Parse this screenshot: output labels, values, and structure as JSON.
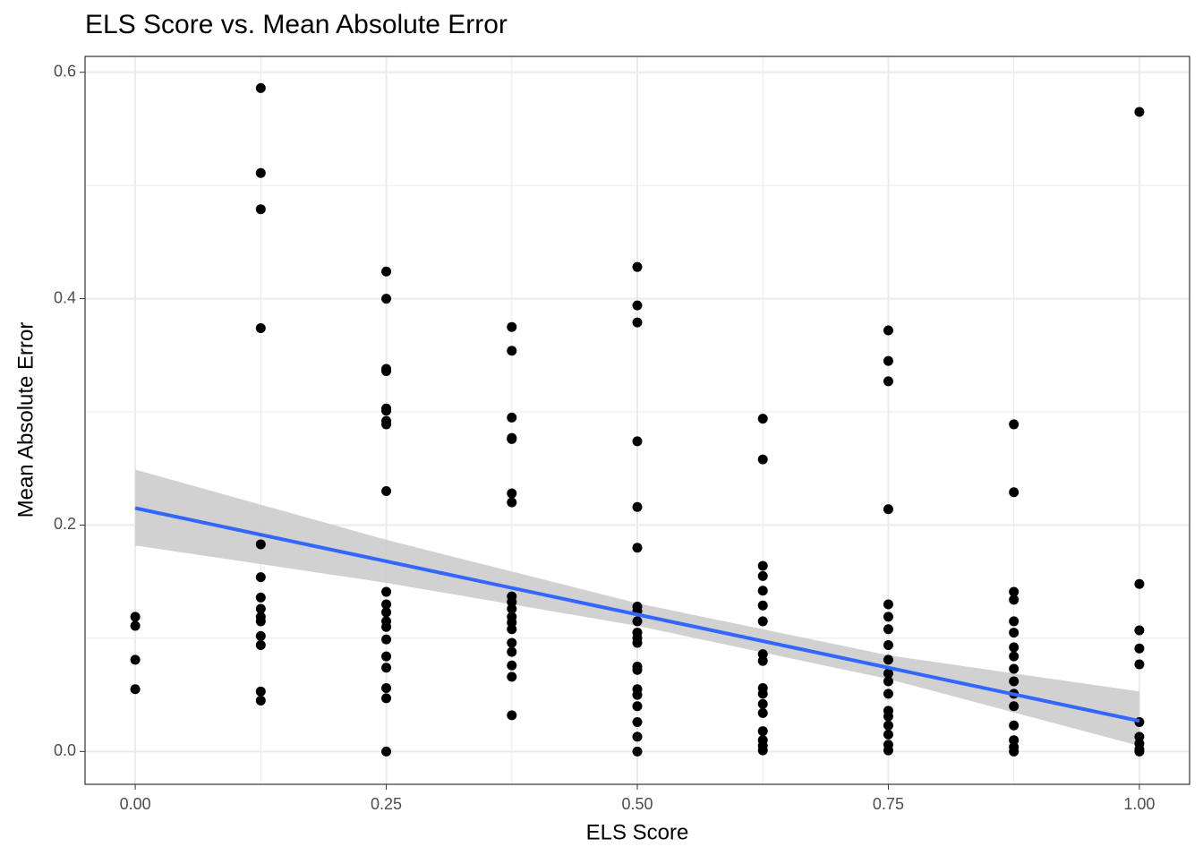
{
  "chart_data": {
    "type": "scatter",
    "title": "ELS Score vs. Mean Absolute Error",
    "x_label": "ELS Score",
    "y_label": "Mean Absolute Error",
    "x": [
      0,
      0,
      0,
      0,
      0.125,
      0.125,
      0.125,
      0.125,
      0.125,
      0.125,
      0.125,
      0.125,
      0.125,
      0.125,
      0.125,
      0.125,
      0.125,
      0.125,
      0.25,
      0.25,
      0.25,
      0.25,
      0.25,
      0.25,
      0.25,
      0.25,
      0.25,
      0.25,
      0.25,
      0.25,
      0.25,
      0.25,
      0.25,
      0.25,
      0.25,
      0.25,
      0.25,
      0.25,
      0.375,
      0.375,
      0.375,
      0.375,
      0.375,
      0.375,
      0.375,
      0.375,
      0.375,
      0.375,
      0.375,
      0.375,
      0.375,
      0.375,
      0.375,
      0.375,
      0.375,
      0.375,
      0.5,
      0.5,
      0.5,
      0.5,
      0.5,
      0.5,
      0.5,
      0.5,
      0.5,
      0.5,
      0.5,
      0.5,
      0.5,
      0.5,
      0.5,
      0.5,
      0.5,
      0.5,
      0.5,
      0.5,
      0.625,
      0.625,
      0.625,
      0.625,
      0.625,
      0.625,
      0.625,
      0.625,
      0.625,
      0.625,
      0.625,
      0.625,
      0.625,
      0.625,
      0.625,
      0.625,
      0.625,
      0.75,
      0.75,
      0.75,
      0.75,
      0.75,
      0.75,
      0.75,
      0.75,
      0.75,
      0.75,
      0.75,
      0.75,
      0.75,
      0.75,
      0.75,
      0.75,
      0.75,
      0.75,
      0.875,
      0.875,
      0.875,
      0.875,
      0.875,
      0.875,
      0.875,
      0.875,
      0.875,
      0.875,
      0.875,
      0.875,
      0.875,
      0.875,
      0.875,
      0.875,
      1,
      1,
      1,
      1,
      1,
      1,
      1,
      1,
      1,
      1
    ],
    "values": [
      0.119,
      0.111,
      0.081,
      0.055,
      0.586,
      0.511,
      0.479,
      0.374,
      0.183,
      0.154,
      0.136,
      0.126,
      0.119,
      0.115,
      0.102,
      0.094,
      0.053,
      0.045,
      0.424,
      0.4,
      0.338,
      0.336,
      0.303,
      0.301,
      0.292,
      0.289,
      0.23,
      0.141,
      0.13,
      0.123,
      0.115,
      0.11,
      0.099,
      0.084,
      0.074,
      0.056,
      0.047,
      0,
      0.375,
      0.354,
      0.295,
      0.277,
      0.276,
      0.228,
      0.22,
      0.137,
      0.132,
      0.126,
      0.119,
      0.114,
      0.108,
      0.096,
      0.088,
      0.076,
      0.066,
      0.032,
      0.428,
      0.394,
      0.379,
      0.274,
      0.216,
      0.18,
      0.128,
      0.124,
      0.115,
      0.105,
      0.1,
      0.096,
      0.075,
      0.072,
      0.055,
      0.05,
      0.04,
      0.026,
      0.013,
      0,
      0.294,
      0.258,
      0.164,
      0.155,
      0.142,
      0.129,
      0.115,
      0.086,
      0.08,
      0.056,
      0.051,
      0.042,
      0.034,
      0.018,
      0.01,
      0.005,
      0.001,
      0.372,
      0.345,
      0.327,
      0.214,
      0.13,
      0.119,
      0.108,
      0.094,
      0.081,
      0.069,
      0.062,
      0.051,
      0.036,
      0.031,
      0.023,
      0.015,
      0.006,
      0.001,
      0.289,
      0.229,
      0.141,
      0.134,
      0.115,
      0.105,
      0.092,
      0.084,
      0.073,
      0.062,
      0.051,
      0.04,
      0.023,
      0.01,
      0.004,
      0,
      0.565,
      0.148,
      0.107,
      0.091,
      0.077,
      0.026,
      0.013,
      0.007,
      0.002,
      0
    ],
    "color": "#000000",
    "fit": {
      "x": [
        0,
        1
      ],
      "values": [
        0.215,
        0.027
      ],
      "color": "#3366ff"
    },
    "band": {
      "x": [
        0,
        0.25,
        0.5,
        0.75,
        1
      ],
      "upper": [
        0.249,
        0.187,
        0.131,
        0.085,
        0.053
      ],
      "lower": [
        0.182,
        0.149,
        0.111,
        0.064,
        0.005
      ],
      "color": "#cccccc"
    },
    "xlim": [
      -0.05,
      1.05
    ],
    "ylim": [
      -0.029,
      0.614
    ],
    "xticks": [
      {
        "value": 0,
        "label": "0.00"
      },
      {
        "value": 0.25,
        "label": "0.25"
      },
      {
        "value": 0.5,
        "label": "0.50"
      },
      {
        "value": 0.75,
        "label": "0.75"
      },
      {
        "value": 1,
        "label": "1.00"
      }
    ],
    "yticks": [
      {
        "value": 0,
        "label": "0.0"
      },
      0.2,
      0.4,
      0.6
    ],
    "x_minor_grid": [
      0.125,
      0.375,
      0.625,
      0.875
    ],
    "y_minor_grid": [
      0.1,
      0.3,
      0.5
    ],
    "grid": true
  }
}
